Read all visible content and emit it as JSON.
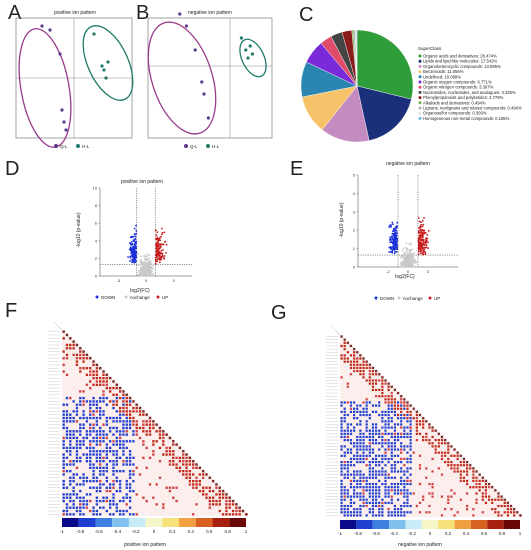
{
  "panels": {
    "A": {
      "label": "A",
      "title": "positive ion pattern",
      "legend": [
        "Q-L",
        "H-L"
      ]
    },
    "B": {
      "label": "B",
      "title": "negative ion pattern",
      "legend": [
        "Q-L",
        "H-L"
      ]
    },
    "C": {
      "label": "C"
    },
    "D": {
      "label": "D",
      "title": "positive ion pattern",
      "xlabel": "log2(FC)",
      "ylabel": "-log10 (p-value)",
      "legend": [
        "DOWN",
        "nochange",
        "UP"
      ]
    },
    "E": {
      "label": "E",
      "title": "negative ion pattern",
      "xlabel": "log2(FC)",
      "ylabel": "-log10 (p-value)",
      "legend": [
        "DOWN",
        "nochange",
        "UP"
      ]
    },
    "F": {
      "label": "F",
      "colorbar_title": "positive ion pattern"
    },
    "G": {
      "label": "G",
      "colorbar_title": "negative ion pattern"
    }
  },
  "colors": {
    "ql": "#5a3a8a",
    "hl": "#1f7a6a",
    "ellipse_ql": "#9a3b8a",
    "ellipse_hl": "#1f7a6a",
    "down": "#1a2fd8",
    "up": "#c81e1e",
    "nochange": "#c8c8c8"
  },
  "chart_data": [
    {
      "type": "scatter",
      "title": "positive ion pattern",
      "series": [
        {
          "name": "Q-L",
          "x": [
            -1.6,
            -1.2,
            -0.7,
            -0.6,
            -0.5,
            -0.4
          ],
          "y": [
            1.3,
            1.2,
            0.6,
            -0.8,
            -1.1,
            -1.3
          ]
        },
        {
          "name": "H-L",
          "x": [
            1.0,
            1.4,
            1.5,
            1.6,
            1.7
          ],
          "y": [
            1.1,
            0.3,
            0.2,
            0.0,
            0.4
          ]
        }
      ]
    },
    {
      "type": "scatter",
      "title": "negative ion pattern",
      "series": [
        {
          "name": "Q-L",
          "x": [
            -1.6,
            -1.3,
            -0.9,
            -0.6,
            -0.5,
            -0.3
          ],
          "y": [
            1.4,
            1.1,
            0.5,
            -0.3,
            -0.6,
            -1.2
          ]
        },
        {
          "name": "H-L",
          "x": [
            1.2,
            1.4,
            1.5,
            1.6,
            1.7
          ],
          "y": [
            0.8,
            0.5,
            0.3,
            0.6,
            0.4
          ]
        }
      ]
    },
    {
      "type": "pie",
      "legend_title": "SuperClass",
      "categories": [
        "Organic acids and derivatives: 28.474%",
        "Lipids and lipid-like molecules: 17.542%",
        "Organoheterocyclic compounds: 13.995%",
        "Benzenoids: 11.056%",
        "Undefined: 10.068%",
        "Organic oxygen compounds: 6.771%",
        "Organic nitrogen compounds: 3.397%",
        "Nucleosides, nucleotides, and analogues: 3.335%",
        "Phenylpropanoids and polyketides: 2.779%",
        "Alkaloids and derivatives: 0.494%",
        "Lignans, neolignans and related compounds: 0.494%",
        "Organosulfur compounds: 0.309%",
        "Homogeneous non-metal compounds: 0.185%"
      ],
      "values": [
        28.474,
        17.542,
        13.995,
        11.056,
        10.068,
        6.771,
        3.397,
        3.335,
        2.779,
        0.494,
        0.494,
        0.309,
        0.185
      ],
      "colors": [
        "#2f9e3a",
        "#1c2f7a",
        "#c48bc0",
        "#f6c36a",
        "#2a86b0",
        "#7a2ad8",
        "#e04b6a",
        "#444444",
        "#8a1b1b",
        "#7ab04a",
        "#b0b0b0",
        "#e0e0e0",
        "#5fb8e0"
      ]
    },
    {
      "type": "scatter",
      "title": "positive ion pattern",
      "xlabel": "log2(FC)",
      "ylabel": "-log10 (p-value)",
      "xlim": [
        -5,
        5
      ],
      "ylim": [
        0,
        10
      ],
      "yticks": [
        0,
        2,
        4,
        6,
        8,
        10
      ],
      "xticks": [
        -3,
        0,
        3
      ],
      "series": [
        {
          "name": "DOWN"
        },
        {
          "name": "nochange"
        },
        {
          "name": "UP"
        }
      ]
    },
    {
      "type": "scatter",
      "title": "negative ion pattern",
      "xlabel": "log2(FC)",
      "ylabel": "-log10 (p-value)",
      "xlim": [
        -5,
        5
      ],
      "ylim": [
        0,
        5
      ],
      "yticks": [
        0,
        1,
        2,
        3,
        4,
        5
      ],
      "xticks": [
        -2,
        0,
        2
      ],
      "series": [
        {
          "name": "DOWN"
        },
        {
          "name": "nochange"
        },
        {
          "name": "UP"
        }
      ]
    },
    {
      "type": "heatmap",
      "colorbar_title": "positive ion pattern",
      "colorbar_ticks": [
        "-1",
        "-0.8",
        "-0.6",
        "-0.4",
        "-0.2",
        "0",
        "0.2",
        "0.4",
        "0.6",
        "0.8",
        "1"
      ],
      "colorbar_colors": [
        "#0a0a8a",
        "#1f3fd0",
        "#3f7fe0",
        "#7fc0ef",
        "#c8ecf5",
        "#f5f5c8",
        "#f5e07a",
        "#f0a040",
        "#d86020",
        "#a82010",
        "#6a0808"
      ]
    },
    {
      "type": "heatmap",
      "colorbar_title": "negative ion pattern",
      "colorbar_ticks": [
        "-1",
        "-0.8",
        "-0.6",
        "-0.4",
        "-0.2",
        "0",
        "0.2",
        "0.4",
        "0.6",
        "0.8",
        "1"
      ],
      "colorbar_colors": [
        "#0a0a8a",
        "#1f3fd0",
        "#3f7fe0",
        "#7fc0ef",
        "#c8ecf5",
        "#f5f5c8",
        "#f5e07a",
        "#f0a040",
        "#d86020",
        "#a82010",
        "#6a0808"
      ]
    }
  ]
}
